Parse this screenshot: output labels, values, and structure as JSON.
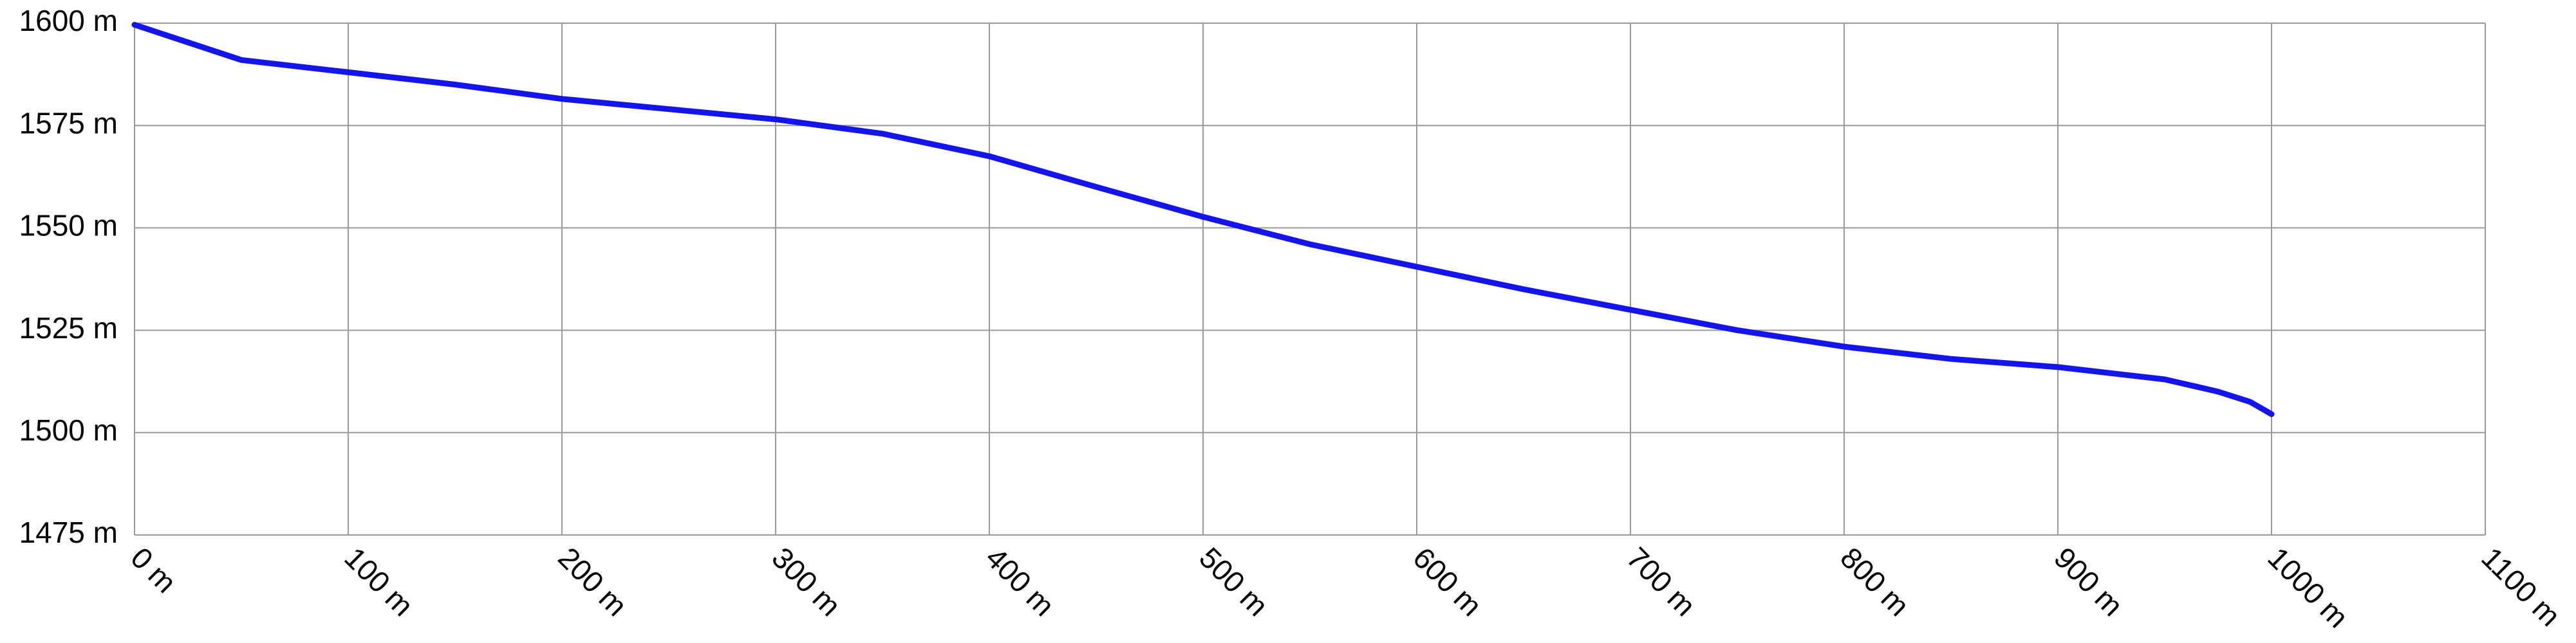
{
  "chart_data": {
    "type": "line",
    "x": [
      0,
      50,
      100,
      150,
      200,
      250,
      300,
      350,
      400,
      450,
      500,
      550,
      600,
      650,
      700,
      750,
      800,
      850,
      900,
      950,
      975,
      990,
      1000
    ],
    "values": [
      1599.6,
      1591,
      1588,
      1585,
      1581.5,
      1579,
      1576.5,
      1573,
      1567.5,
      1560,
      1552.7,
      1546,
      1540.5,
      1535,
      1530,
      1525,
      1521,
      1518,
      1516,
      1513,
      1510,
      1507.5,
      1504.5
    ],
    "color": "#1414ee",
    "xlim": [
      0,
      1100
    ],
    "xticks": [
      {
        "value": 0,
        "label": "0 m"
      },
      {
        "value": 100,
        "label": "100 m"
      },
      {
        "value": 200,
        "label": "200 m"
      },
      {
        "value": 300,
        "label": "300 m"
      },
      {
        "value": 400,
        "label": "400 m"
      },
      {
        "value": 500,
        "label": "500 m"
      },
      {
        "value": 600,
        "label": "600 m"
      },
      {
        "value": 700,
        "label": "700 m"
      },
      {
        "value": 800,
        "label": "800 m"
      },
      {
        "value": 900,
        "label": "900 m"
      },
      {
        "value": 1000,
        "label": "1000 m"
      },
      {
        "value": 1100,
        "label": "1100 m"
      }
    ],
    "ylim": [
      1475,
      1600
    ],
    "yticks": [
      {
        "value": 1475,
        "label": "1475 m"
      },
      {
        "value": 1500,
        "label": "1500 m"
      },
      {
        "value": 1525,
        "label": "1525 m"
      },
      {
        "value": 1550,
        "label": "1550 m"
      },
      {
        "value": 1575,
        "label": "1575 m"
      },
      {
        "value": 1600,
        "label": "1600 m"
      }
    ],
    "grid": true
  }
}
